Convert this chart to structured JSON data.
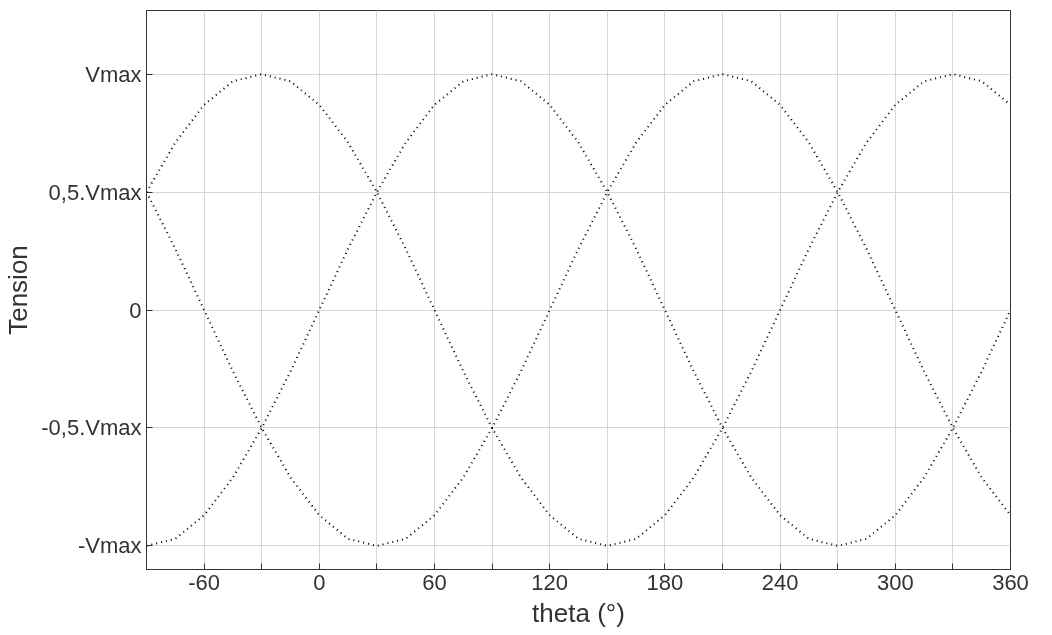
{
  "chart_data": {
    "type": "line",
    "xlabel": "theta (°)",
    "ylabel": "Tension",
    "x": [
      -90,
      -75,
      -60,
      -45,
      -30,
      -15,
      0,
      15,
      30,
      45,
      60,
      75,
      90,
      105,
      120,
      135,
      150,
      165,
      180,
      195,
      210,
      225,
      240,
      255,
      270,
      285,
      300,
      315,
      330,
      345,
      360
    ],
    "series": [
      {
        "color": "#000000",
        "values": [
          0.5,
          0.71,
          0.87,
          0.97,
          1,
          0.97,
          0.87,
          0.71,
          0.5,
          0.26,
          0,
          -0.26,
          -0.5,
          -0.71,
          -0.87,
          -0.97,
          -1,
          -0.97,
          -0.87,
          -0.71,
          -0.5,
          -0.26,
          0,
          0.26,
          0.5,
          0.71,
          0.87,
          0.97,
          1,
          0.97,
          0.87
        ]
      },
      {
        "color": "#000000",
        "values": [
          -1,
          -0.97,
          -0.87,
          -0.71,
          -0.5,
          -0.26,
          0,
          0.26,
          0.5,
          0.71,
          0.87,
          0.97,
          1,
          0.97,
          0.87,
          0.71,
          0.5,
          0.26,
          0,
          -0.26,
          -0.5,
          -0.71,
          -0.87,
          -0.97,
          -1,
          -0.97,
          -0.87,
          -0.71,
          -0.5,
          -0.26,
          0
        ]
      },
      {
        "color": "#000000",
        "values": [
          0.5,
          0.26,
          0,
          -0.26,
          -0.5,
          -0.71,
          -0.87,
          -0.97,
          -1,
          -0.97,
          -0.87,
          -0.71,
          -0.5,
          -0.26,
          0,
          0.26,
          0.5,
          0.71,
          0.87,
          0.97,
          1,
          0.97,
          0.87,
          0.71,
          0.5,
          0.26,
          0,
          -0.26,
          -0.5,
          -0.71,
          -0.87
        ]
      }
    ],
    "xlim": [
      -90,
      360
    ],
    "xticks": [
      -60,
      {
        "value": -30,
        "label": null
      },
      0,
      {
        "value": 30,
        "label": null
      },
      60,
      {
        "value": 90,
        "label": null
      },
      120,
      {
        "value": 150,
        "label": null
      },
      180,
      {
        "value": 210,
        "label": null
      },
      240,
      {
        "value": 270,
        "label": null
      },
      300,
      {
        "value": 330,
        "label": null
      },
      360
    ],
    "ylim": [
      -1.1,
      1.27
    ],
    "yticks": [
      {
        "value": -1,
        "label": "-Vmax"
      },
      {
        "value": -0.5,
        "label": "-0,5.Vmax"
      },
      {
        "value": 0,
        "label": "0"
      },
      {
        "value": 0.5,
        "label": "0,5.Vmax"
      },
      {
        "value": 1,
        "label": "Vmax"
      }
    ],
    "grid": true,
    "line_style": "dotted"
  }
}
